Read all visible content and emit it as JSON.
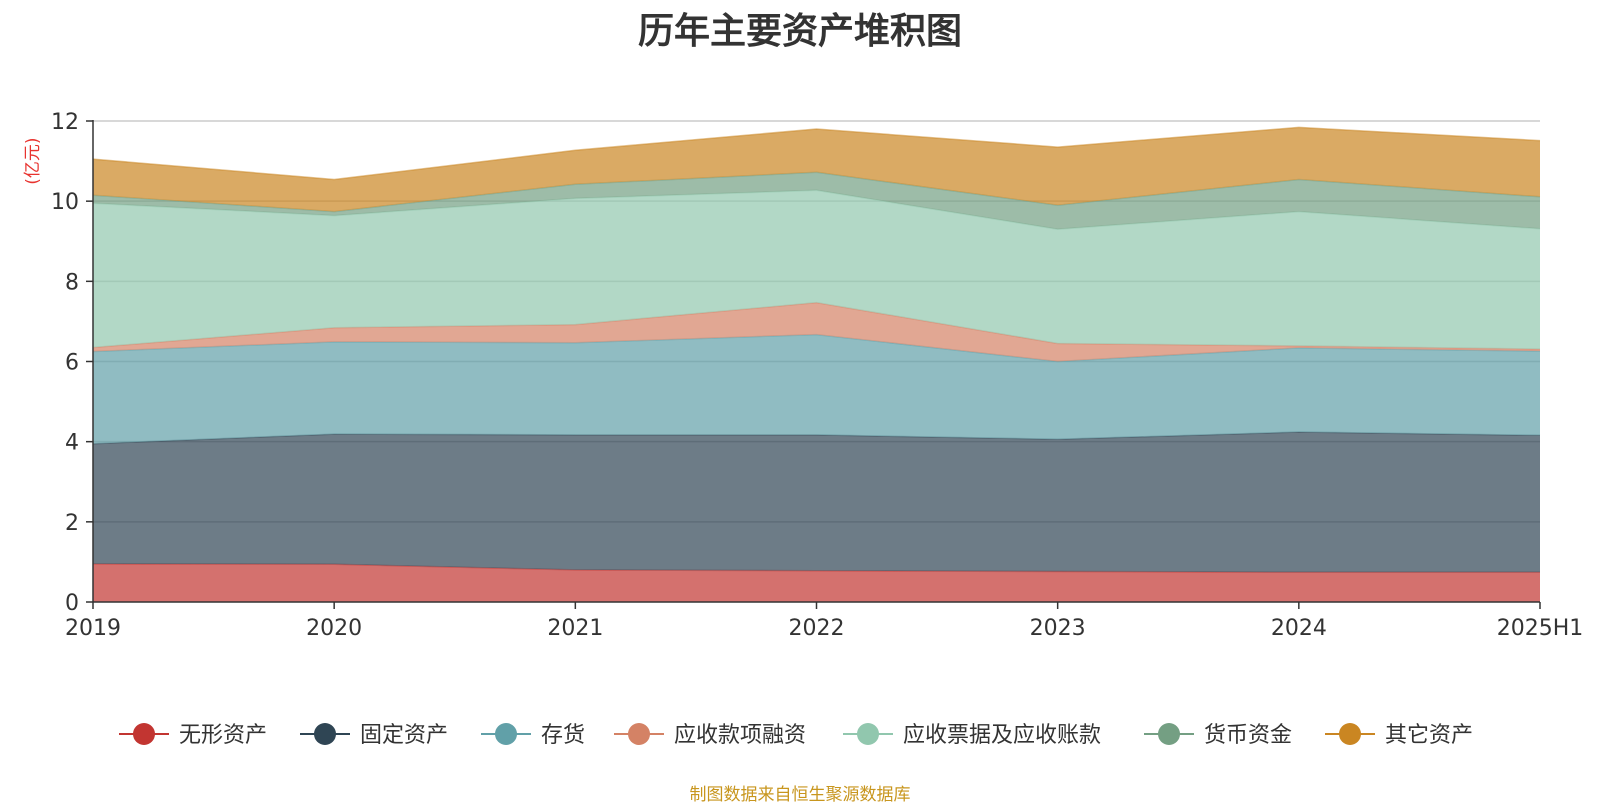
{
  "source_note": "制图数据来自恒生聚源数据库",
  "chart_data": {
    "type": "area",
    "stacked": true,
    "title": "历年主要资产堆积图",
    "ylabel": "(亿元)",
    "xlabel": "",
    "categories": [
      "2019",
      "2020",
      "2021",
      "2022",
      "2023",
      "2024",
      "2025H1"
    ],
    "ylim": [
      0,
      12
    ],
    "yticks": [
      0,
      2,
      4,
      6,
      8,
      10,
      12
    ],
    "grid": true,
    "legend_position": "bottom",
    "series": [
      {
        "name": "无形资产",
        "color": "#c23531",
        "values": [
          0.95,
          0.94,
          0.8,
          0.78,
          0.76,
          0.74,
          0.74
        ]
      },
      {
        "name": "固定资产",
        "color": "#2f4554",
        "values": [
          3.0,
          3.25,
          3.37,
          3.39,
          3.3,
          3.5,
          3.42
        ]
      },
      {
        "name": "存货",
        "color": "#61a0a8",
        "values": [
          2.3,
          2.3,
          2.3,
          2.5,
          1.94,
          2.1,
          2.1
        ]
      },
      {
        "name": "应收款项融资",
        "color": "#d48265",
        "values": [
          0.1,
          0.35,
          0.45,
          0.8,
          0.45,
          0.05,
          0.05
        ]
      },
      {
        "name": "应收票据及应收账款",
        "color": "#91c7ae",
        "values": [
          3.6,
          2.8,
          3.15,
          2.8,
          2.85,
          3.35,
          3.0
        ]
      },
      {
        "name": "货币资金",
        "color": "#749f83",
        "values": [
          0.2,
          0.1,
          0.35,
          0.45,
          0.6,
          0.8,
          0.8
        ]
      },
      {
        "name": "其它资产",
        "color": "#ca8622",
        "values": [
          0.9,
          0.8,
          0.85,
          1.08,
          1.45,
          1.3,
          1.4
        ]
      }
    ]
  }
}
